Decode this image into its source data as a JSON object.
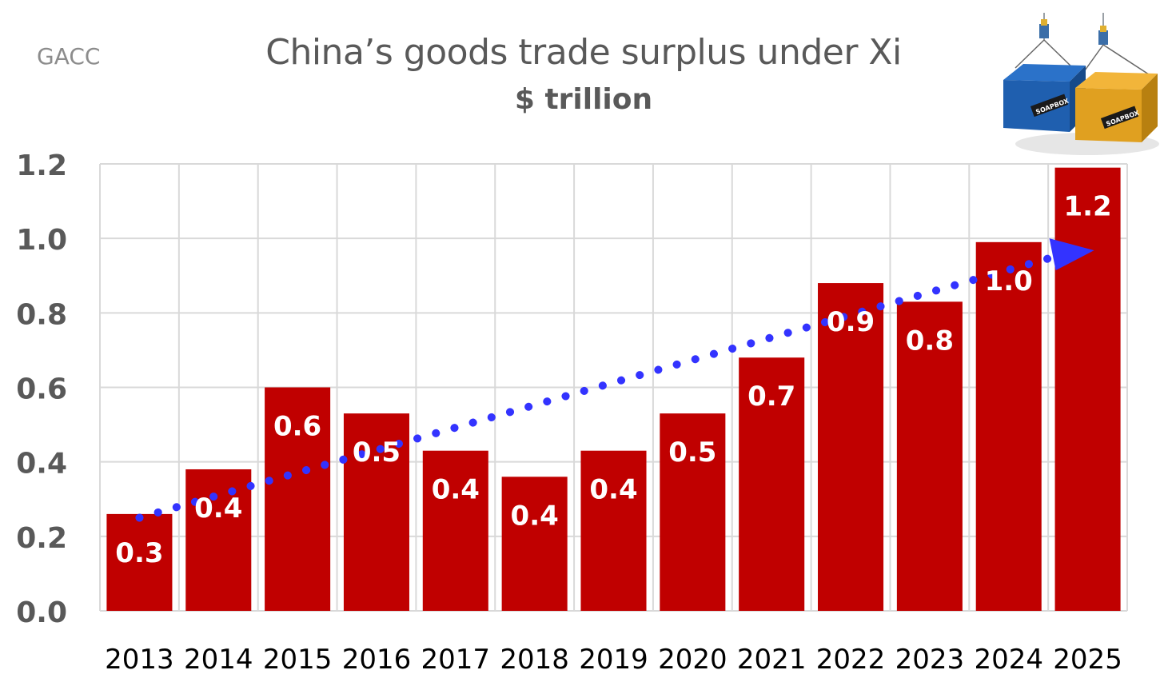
{
  "header": {
    "source": "GACC",
    "title": "China’s goods trade surplus under Xi",
    "subtitle": "$ trillion"
  },
  "logo": {
    "brand_text_left": "SOAPBOX",
    "brand_text_right": "SOAPBOX",
    "icon": "cargo-containers-icon"
  },
  "colors": {
    "bar": "#c00000",
    "trend": "#3333ff",
    "grid": "#d9d9d9",
    "axis_text": "#595959",
    "label_text": "#ffffff"
  },
  "chart_data": {
    "type": "bar",
    "title": "China’s goods trade surplus under Xi",
    "subtitle": "$ trillion",
    "xlabel": "",
    "ylabel": "$ trillion",
    "categories": [
      "2013",
      "2014",
      "2015",
      "2016",
      "2017",
      "2018",
      "2019",
      "2020",
      "2021",
      "2022",
      "2023",
      "2024",
      "2025"
    ],
    "values": [
      0.26,
      0.38,
      0.6,
      0.53,
      0.43,
      0.36,
      0.43,
      0.53,
      0.68,
      0.88,
      0.83,
      0.99,
      1.19
    ],
    "data_labels": [
      "0.3",
      "0.4",
      "0.6",
      "0.5",
      "0.4",
      "0.4",
      "0.4",
      "0.5",
      "0.7",
      "0.9",
      "0.8",
      "1.0",
      "1.2"
    ],
    "ylim": [
      0,
      1.2
    ],
    "yticks": [
      0.0,
      0.2,
      0.4,
      0.6,
      0.8,
      1.0,
      1.2
    ],
    "ytick_labels": [
      "0.0",
      "0.2",
      "0.4",
      "0.6",
      "0.8",
      "1.0",
      "1.2"
    ],
    "grid": true,
    "trendline": {
      "style": "dotted-arrow",
      "start": {
        "category": "2013",
        "value": 0.25
      },
      "end": {
        "category": "2025",
        "value": 0.97
      }
    }
  }
}
